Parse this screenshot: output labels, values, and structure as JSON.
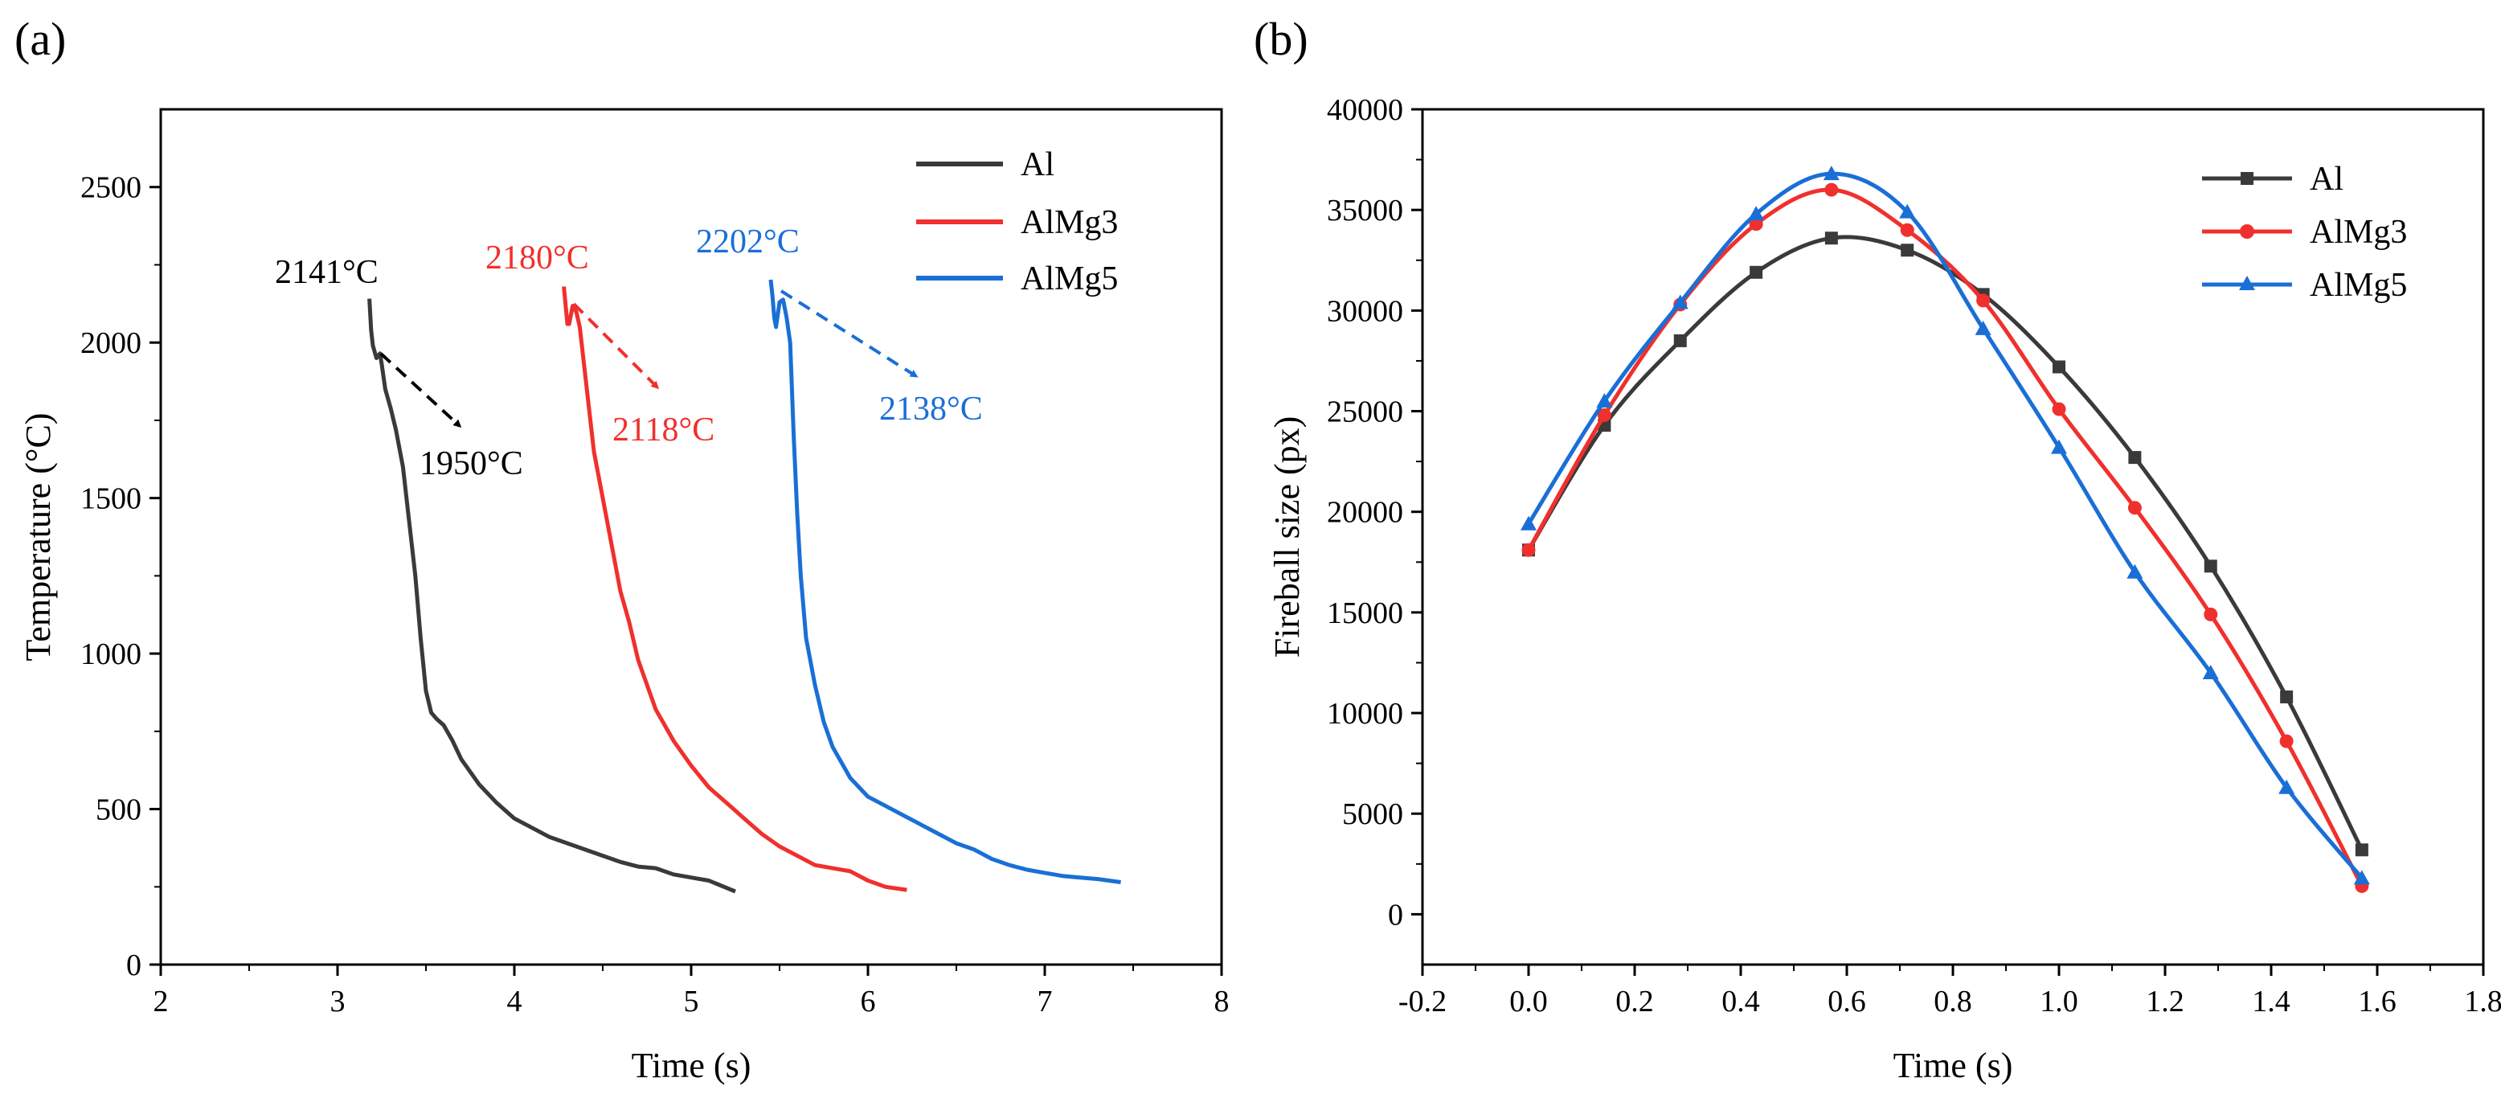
{
  "colors": {
    "Al": "#3a3a3a",
    "AlMg3": "#f0302d",
    "AlMg5": "#1a6fd6",
    "axis": "#000000"
  },
  "chart_data": [
    {
      "panel": "(a)",
      "type": "line",
      "xlabel": "Time (s)",
      "ylabel": "Temperature (°C)",
      "xlim": [
        2,
        8
      ],
      "ylim": [
        0,
        2750
      ],
      "xticks": [
        2,
        3,
        4,
        5,
        6,
        7,
        8
      ],
      "yticks": [
        0,
        500,
        1000,
        1500,
        2000,
        2500
      ],
      "legend": "top-right",
      "series": [
        {
          "name": "Al",
          "x": [
            3.18,
            3.19,
            3.2,
            3.22,
            3.24,
            3.25,
            3.27,
            3.3,
            3.33,
            3.37,
            3.4,
            3.44,
            3.47,
            3.5,
            3.53,
            3.56,
            3.6,
            3.65,
            3.7,
            3.8,
            3.9,
            4.0,
            4.1,
            4.2,
            4.35,
            4.5,
            4.6,
            4.7,
            4.8,
            4.9,
            5.0,
            5.1,
            5.25
          ],
          "y": [
            2141,
            2040,
            1990,
            1950,
            1965,
            1930,
            1850,
            1790,
            1720,
            1600,
            1450,
            1250,
            1050,
            880,
            810,
            790,
            770,
            720,
            660,
            580,
            520,
            470,
            440,
            410,
            380,
            350,
            330,
            315,
            310,
            290,
            280,
            270,
            235
          ]
        },
        {
          "name": "AlMg3",
          "x": [
            4.28,
            4.29,
            4.3,
            4.31,
            4.33,
            4.35,
            4.37,
            4.4,
            4.45,
            4.5,
            4.55,
            4.6,
            4.65,
            4.7,
            4.75,
            4.8,
            4.9,
            5.0,
            5.1,
            5.2,
            5.3,
            5.4,
            5.5,
            5.6,
            5.7,
            5.8,
            5.9,
            6.0,
            6.1,
            6.22
          ],
          "y": [
            2180,
            2120,
            2060,
            2060,
            2118,
            2100,
            2050,
            1900,
            1650,
            1500,
            1350,
            1200,
            1100,
            980,
            900,
            820,
            720,
            640,
            570,
            520,
            470,
            420,
            380,
            350,
            320,
            310,
            300,
            270,
            250,
            240
          ]
        },
        {
          "name": "AlMg5",
          "x": [
            5.45,
            5.46,
            5.47,
            5.48,
            5.5,
            5.52,
            5.54,
            5.56,
            5.58,
            5.6,
            5.62,
            5.65,
            5.7,
            5.75,
            5.8,
            5.9,
            6.0,
            6.1,
            6.2,
            6.3,
            6.4,
            6.5,
            6.6,
            6.7,
            6.8,
            6.9,
            7.0,
            7.1,
            7.2,
            7.3,
            7.43
          ],
          "y": [
            2202,
            2150,
            2080,
            2050,
            2130,
            2138,
            2080,
            2000,
            1700,
            1450,
            1250,
            1050,
            900,
            780,
            700,
            600,
            540,
            510,
            480,
            450,
            420,
            390,
            370,
            340,
            320,
            305,
            295,
            285,
            280,
            275,
            265
          ]
        }
      ],
      "annotations": [
        "2141°C",
        "1950°C",
        "2180°C",
        "2118°C",
        "2202°C",
        "2138°C"
      ]
    },
    {
      "panel": "(b)",
      "type": "line",
      "xlabel": "Time (s)",
      "ylabel": "Fireball size (px)",
      "xlim": [
        -0.2,
        1.8
      ],
      "ylim": [
        -2500,
        40000
      ],
      "xticks": [
        -0.2,
        0.0,
        0.2,
        0.4,
        0.6,
        0.8,
        1.0,
        1.2,
        1.4,
        1.6,
        1.8
      ],
      "xticklabels": [
        "-0.2",
        "0.0",
        "0.2",
        "0.4",
        "0.6",
        "0.8",
        "1.0",
        "1.2",
        "1.4",
        "1.6",
        "1.8"
      ],
      "yticks": [
        0,
        5000,
        10000,
        15000,
        20000,
        25000,
        30000,
        35000,
        40000
      ],
      "legend": "top-right",
      "x": [
        0.0,
        0.143,
        0.286,
        0.429,
        0.571,
        0.714,
        0.857,
        1.0,
        1.143,
        1.286,
        1.429,
        1.571
      ],
      "series": [
        {
          "name": "Al",
          "marker": "square",
          "values": [
            18100,
            24300,
            28500,
            31900,
            33600,
            33000,
            30800,
            27200,
            22700,
            17300,
            10800,
            3200
          ]
        },
        {
          "name": "AlMg3",
          "marker": "circle",
          "values": [
            18100,
            24800,
            30300,
            34300,
            36000,
            34000,
            30500,
            25100,
            20200,
            14900,
            8600,
            1400
          ]
        },
        {
          "name": "AlMg5",
          "marker": "triangle",
          "values": [
            19400,
            25500,
            30400,
            34800,
            36800,
            34900,
            29100,
            23200,
            17000,
            12000,
            6300,
            1800
          ]
        }
      ]
    }
  ]
}
